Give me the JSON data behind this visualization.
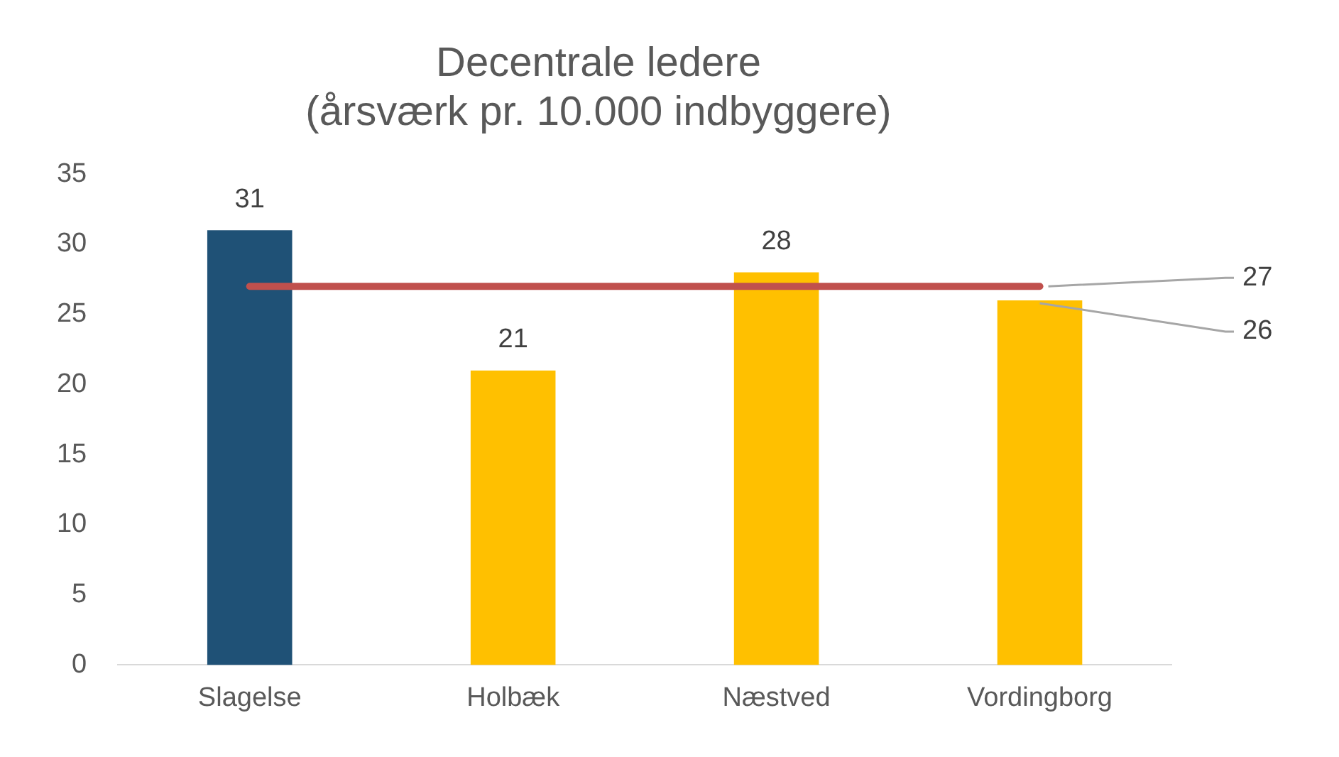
{
  "chart_data": {
    "type": "bar",
    "title": "Decentrale ledere\n(årsværk pr. 10.000 indbyggere)",
    "categories": [
      "Slagelse",
      "Holbæk",
      "Næstved",
      "Vordingborg"
    ],
    "series": [
      {
        "colors": [
          "#1f5176",
          "#ffc000",
          "#ffc000",
          "#ffc000"
        ],
        "values": [
          31,
          21,
          28,
          26
        ],
        "value_labels": [
          "31",
          "21",
          "28",
          "26"
        ]
      },
      {
        "type": "line",
        "color": "#c0504d",
        "values": [
          27,
          27,
          27,
          27
        ],
        "value_labels": [
          null,
          null,
          null,
          "27"
        ]
      }
    ],
    "ylim": [
      0,
      35
    ],
    "yticks": [
      0,
      5,
      10,
      15,
      20,
      25,
      30,
      35
    ],
    "grid": false,
    "legend": false
  }
}
